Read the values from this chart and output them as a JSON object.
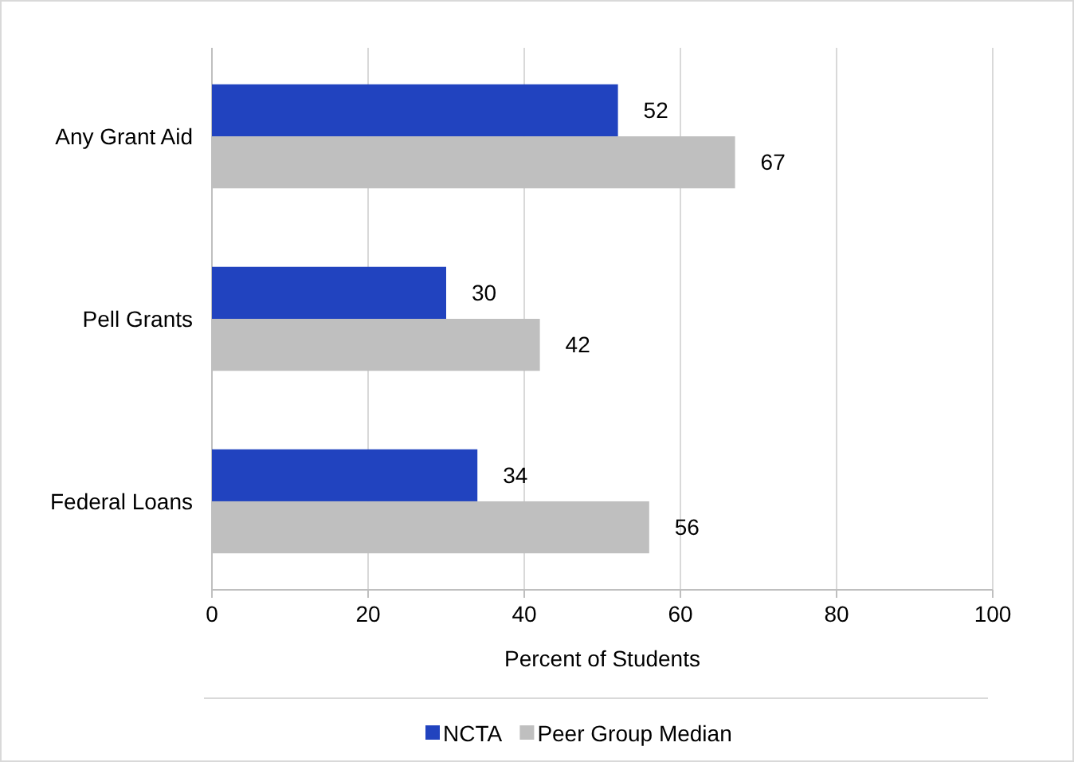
{
  "chart_data": {
    "type": "bar",
    "orientation": "horizontal",
    "categories": [
      "Any Grant Aid",
      "Pell Grants",
      "Federal Loans"
    ],
    "series": [
      {
        "name": "NCTA",
        "color": "#2143bf",
        "values": [
          52,
          30,
          34
        ]
      },
      {
        "name": "Peer Group Median",
        "color": "#bfbfbf",
        "values": [
          67,
          42,
          56
        ]
      }
    ],
    "xlabel": "Percent of Students",
    "xlim": [
      0,
      100
    ],
    "xticks": [
      0,
      20,
      40,
      60,
      80,
      100
    ],
    "grid": "x",
    "data_labels": true,
    "legend": "bottom"
  }
}
